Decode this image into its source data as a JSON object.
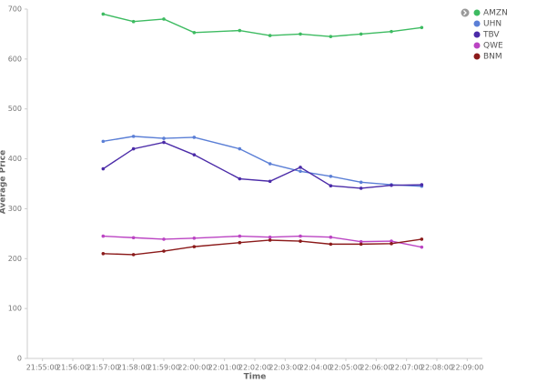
{
  "chart_data": {
    "type": "line",
    "x_label": "Time",
    "y_label": "Average Price",
    "x": [
      "21:57:00",
      "21:58:00",
      "21:59:00",
      "22:00:00",
      "22:01:30",
      "22:02:30",
      "22:03:30",
      "22:04:30",
      "22:05:30",
      "22:06:30",
      "22:07:30"
    ],
    "series": [
      {
        "name": "AMZN",
        "color": "#3dbb61",
        "values": [
          690,
          675,
          680,
          653,
          657,
          647,
          650,
          645,
          650,
          655,
          663
        ]
      },
      {
        "name": "UHN",
        "color": "#5b7fd6",
        "values": [
          435,
          445,
          441,
          443,
          420,
          390,
          375,
          365,
          353,
          348,
          345
        ]
      },
      {
        "name": "TBV",
        "color": "#4b2ba8",
        "values": [
          380,
          420,
          433,
          408,
          360,
          355,
          383,
          346,
          341,
          347,
          348
        ]
      },
      {
        "name": "QWE",
        "color": "#bb44c3",
        "values": [
          245,
          242,
          239,
          241,
          245,
          243,
          245,
          243,
          234,
          235,
          223
        ]
      },
      {
        "name": "BNM",
        "color": "#8b1a1a",
        "values": [
          210,
          208,
          215,
          224,
          232,
          237,
          235,
          229,
          229,
          230,
          239
        ]
      }
    ],
    "xlim": [
      "21:54:30",
      "22:09:30"
    ],
    "xticks": [
      "21:55:00",
      "21:56:00",
      "21:57:00",
      "21:58:00",
      "21:59:00",
      "22:00:00",
      "22:01:00",
      "22:02:00",
      "22:03:00",
      "22:04:00",
      "22:05:00",
      "22:06:00",
      "22:07:00",
      "22:08:00",
      "22:09:00"
    ],
    "ylim": [
      0,
      700
    ],
    "yticks": [
      0,
      100,
      200,
      300,
      400,
      500,
      600,
      700
    ],
    "grid": false,
    "legend": "top-right"
  }
}
